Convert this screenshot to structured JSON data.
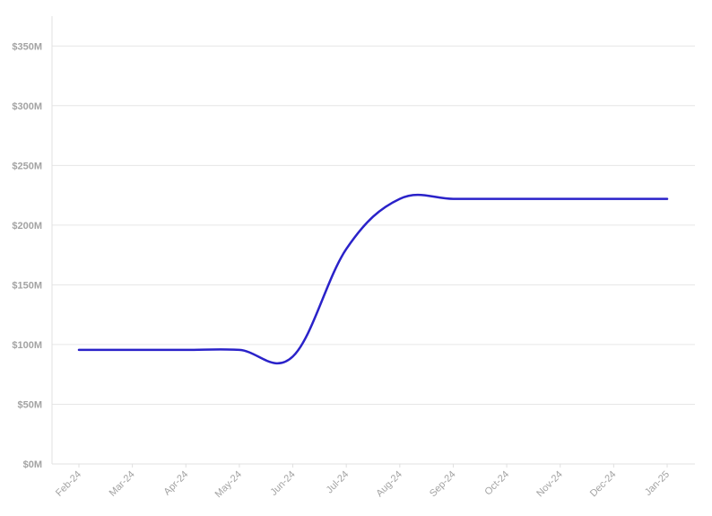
{
  "chart_data": {
    "type": "line",
    "title": "",
    "xlabel": "",
    "ylabel": "",
    "categories": [
      "Feb-24",
      "Mar-24",
      "Apr-24",
      "May-24",
      "Jun-24",
      "Jul-24",
      "Aug-24",
      "Sep-24",
      "Oct-24",
      "Nov-24",
      "Dec-24",
      "Jan-25"
    ],
    "series": [
      {
        "color": "#2a22c9",
        "values": [
          95.5,
          95.5,
          95.5,
          95.5,
          90,
          180,
          222,
          222,
          222,
          222,
          222,
          222
        ]
      }
    ],
    "ylim": [
      0,
      375
    ],
    "yticks": [
      0,
      50,
      100,
      150,
      200,
      250,
      300,
      350
    ],
    "ytick_labels": [
      "$0M",
      "$50M",
      "$100M",
      "$150M",
      "$200M",
      "$250M",
      "$300M",
      "$350M"
    ],
    "grid": true,
    "legend": "none"
  }
}
